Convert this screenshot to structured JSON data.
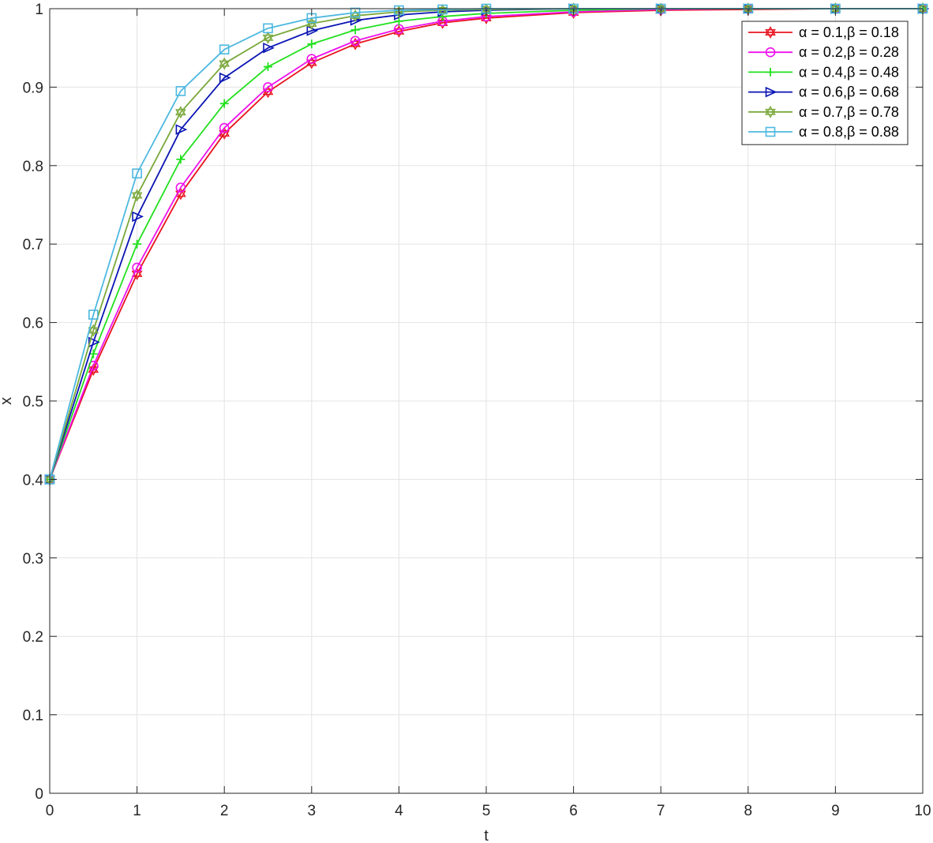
{
  "chart_data": {
    "type": "line",
    "title": "",
    "xlabel": "t",
    "ylabel": "x",
    "xlim": [
      0,
      10
    ],
    "ylim": [
      0,
      1
    ],
    "xticks": [
      "0",
      "1",
      "2",
      "3",
      "4",
      "5",
      "6",
      "7",
      "8",
      "9",
      "10"
    ],
    "yticks": [
      "0",
      "0.1",
      "0.2",
      "0.3",
      "0.4",
      "0.5",
      "0.6",
      "0.7",
      "0.8",
      "0.9",
      "1"
    ],
    "grid": true,
    "legend_position": "top-right",
    "series": [
      {
        "name": "α = 0.1,β = 0.18",
        "color": "#e8141e",
        "marker": "hexagram",
        "x": [
          0,
          0.5,
          1,
          1.5,
          2,
          2.5,
          3,
          3.5,
          4,
          4.5,
          5,
          6,
          7,
          8,
          9,
          10
        ],
        "y": [
          0.4,
          0.54,
          0.662,
          0.764,
          0.841,
          0.894,
          0.931,
          0.955,
          0.971,
          0.982,
          0.988,
          0.995,
          0.998,
          0.999,
          1.0,
          1.0
        ]
      },
      {
        "name": "α = 0.2,β = 0.28",
        "color": "#ee10ee",
        "marker": "circle",
        "x": [
          0,
          0.5,
          1,
          1.5,
          2,
          2.5,
          3,
          3.5,
          4,
          4.5,
          5,
          6,
          7,
          8,
          9,
          10
        ],
        "y": [
          0.4,
          0.545,
          0.67,
          0.772,
          0.848,
          0.9,
          0.936,
          0.959,
          0.974,
          0.984,
          0.99,
          0.996,
          0.999,
          1.0,
          1.0,
          1.0
        ]
      },
      {
        "name": "α = 0.4,β = 0.48",
        "color": "#22e01e",
        "marker": "plus",
        "x": [
          0,
          0.5,
          1,
          1.5,
          2,
          2.5,
          3,
          3.5,
          4,
          4.5,
          5,
          6,
          7,
          8,
          9,
          10
        ],
        "y": [
          0.4,
          0.56,
          0.7,
          0.808,
          0.879,
          0.926,
          0.955,
          0.973,
          0.984,
          0.99,
          0.994,
          0.998,
          1.0,
          1.0,
          1.0,
          1.0
        ]
      },
      {
        "name": "α = 0.6,β = 0.68",
        "color": "#0a14b4",
        "marker": "triangle-right",
        "x": [
          0,
          0.5,
          1,
          1.5,
          2,
          2.5,
          3,
          3.5,
          4,
          4.5,
          5,
          6,
          7,
          8,
          9,
          10
        ],
        "y": [
          0.4,
          0.575,
          0.735,
          0.846,
          0.912,
          0.95,
          0.972,
          0.985,
          0.992,
          0.996,
          0.998,
          1.0,
          1.0,
          1.0,
          1.0,
          1.0
        ]
      },
      {
        "name": "α = 0.7,β = 0.78",
        "color": "#7aa83a",
        "marker": "hexagram",
        "x": [
          0,
          0.5,
          1,
          1.5,
          2,
          2.5,
          3,
          3.5,
          4,
          4.5,
          5,
          6,
          7,
          8,
          9,
          10
        ],
        "y": [
          0.4,
          0.59,
          0.762,
          0.868,
          0.93,
          0.963,
          0.981,
          0.991,
          0.996,
          0.998,
          0.999,
          1.0,
          1.0,
          1.0,
          1.0,
          1.0
        ]
      },
      {
        "name": "α = 0.8,β = 0.88",
        "color": "#4db8e0",
        "marker": "square",
        "x": [
          0,
          0.5,
          1,
          1.5,
          2,
          2.5,
          3,
          3.5,
          4,
          4.5,
          5,
          6,
          7,
          8,
          9,
          10
        ],
        "y": [
          0.4,
          0.61,
          0.79,
          0.895,
          0.948,
          0.975,
          0.988,
          0.995,
          0.998,
          0.999,
          1.0,
          1.0,
          1.0,
          1.0,
          1.0,
          1.0
        ]
      }
    ]
  }
}
